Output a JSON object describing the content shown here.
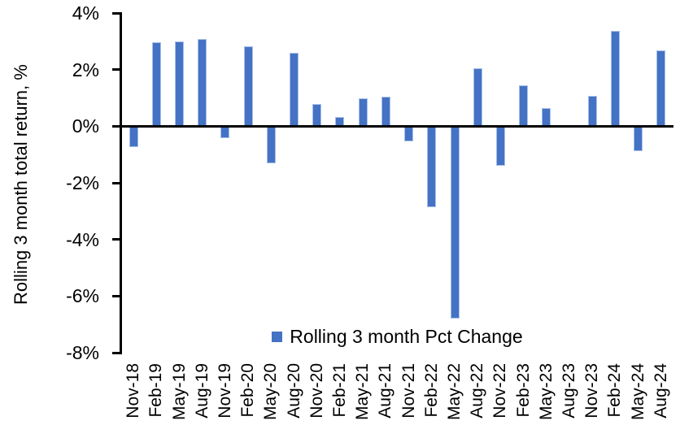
{
  "chart_data": {
    "type": "bar",
    "title": "",
    "xlabel": "",
    "ylabel": "Rolling 3 month total return, %",
    "categories": [
      "Nov-18",
      "Feb-19",
      "May-19",
      "Aug-19",
      "Nov-19",
      "Feb-20",
      "May-20",
      "Aug-20",
      "Nov-20",
      "Feb-21",
      "May-21",
      "Aug-21",
      "Nov-21",
      "Feb-22",
      "May-22",
      "Aug-22",
      "Nov-22",
      "Feb-23",
      "May-23",
      "Aug-23",
      "Nov-23",
      "Feb-24",
      "May-24",
      "Aug-24"
    ],
    "series": [
      {
        "name": "Rolling 3 month Pct Change",
        "values": [
          -0.73,
          2.97,
          3.0,
          3.08,
          -0.42,
          2.83,
          -1.3,
          2.58,
          0.78,
          0.32,
          0.98,
          1.05,
          -0.55,
          -2.86,
          -6.8,
          2.05,
          -1.4,
          1.44,
          0.64,
          0.0,
          1.07,
          3.38,
          -0.88,
          2.69
        ]
      }
    ],
    "ylim": [
      -8,
      4
    ],
    "yticks": [
      4,
      2,
      0,
      -2,
      -4,
      -6,
      -8
    ],
    "ytick_labels": [
      "4%",
      "2%",
      "0%",
      "-2%",
      "-4%",
      "-6%",
      "-8%"
    ],
    "grid": false,
    "legend_position": "bottom-center-inside-plot",
    "colors": {
      "bar_fill": "#4472C4",
      "bar_border": "#A8C0E8",
      "axis": "#000000",
      "text": "#000000",
      "background": "#FFFFFF"
    }
  },
  "legend": {
    "label": "Rolling 3 month Pct Change",
    "marker_color": "#4472C4"
  },
  "y_axis": {
    "title": "Rolling 3 month total return, %"
  }
}
